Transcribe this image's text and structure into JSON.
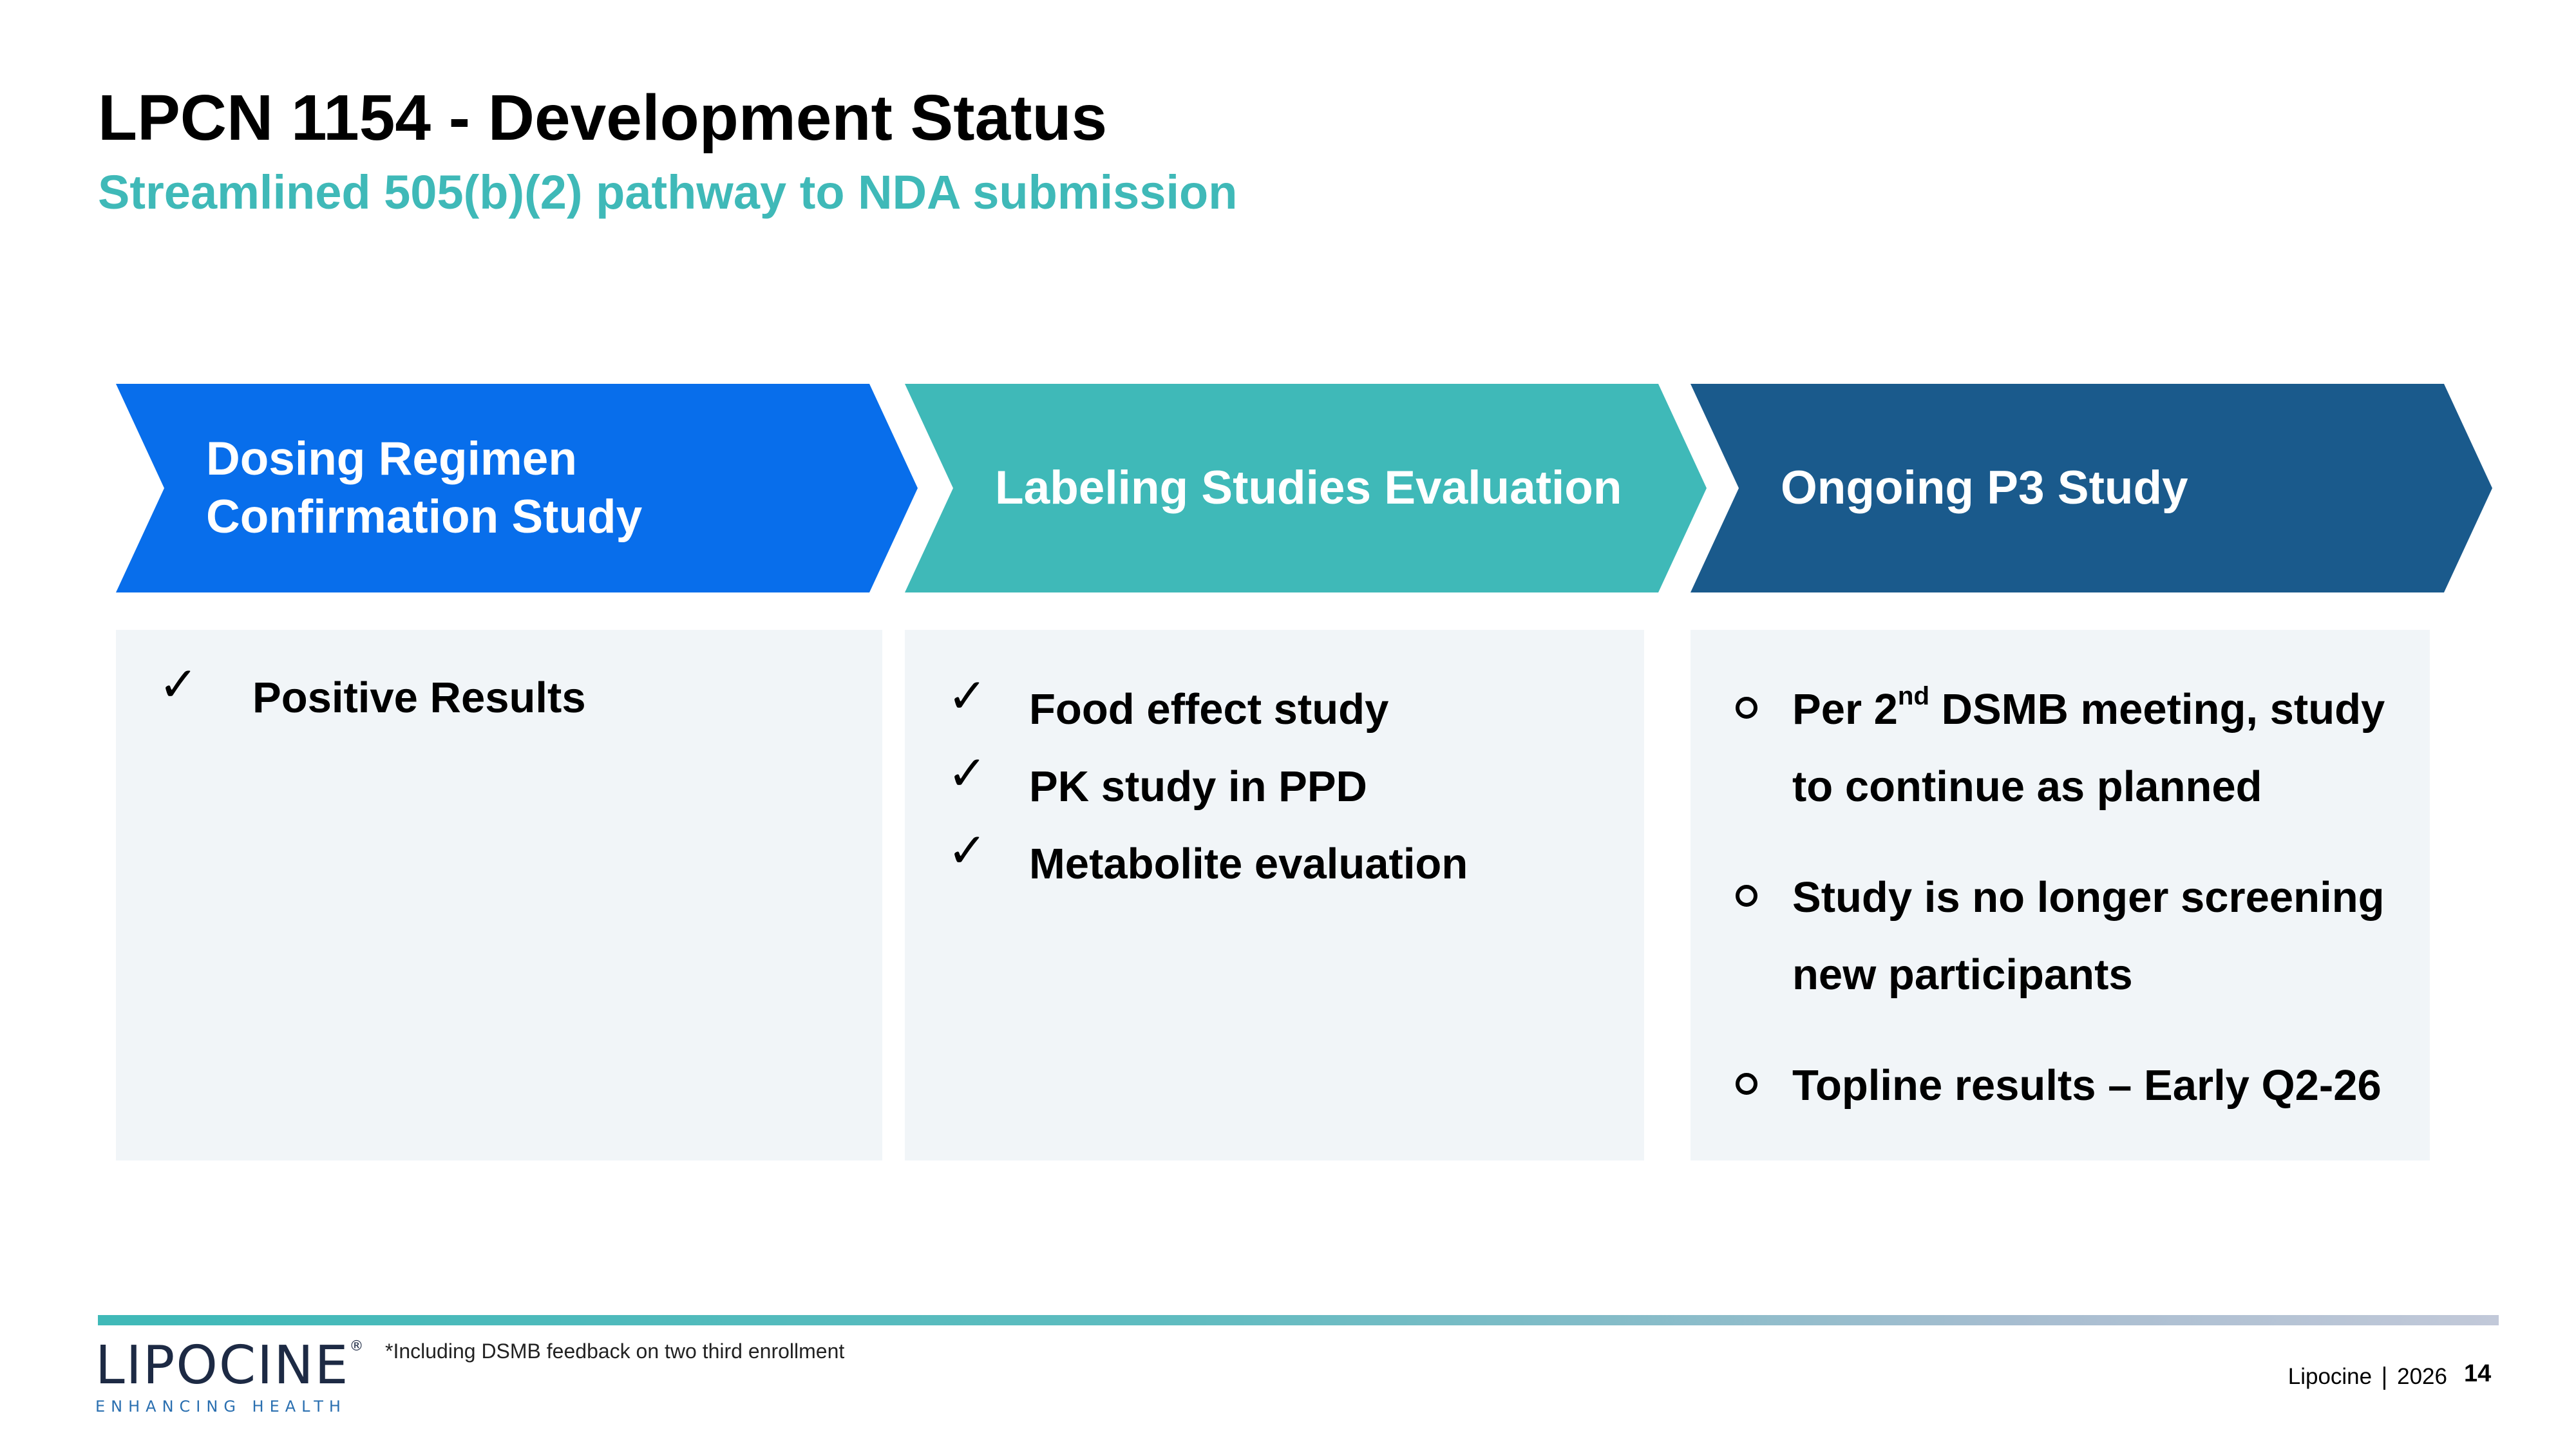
{
  "slide": {
    "title": "LPCN 1154 - Development Status",
    "subtitle": "Streamlined 505(b)(2) pathway to NDA submission"
  },
  "stages": [
    {
      "label_line1": "Dosing Regimen",
      "label_line2": "Confirmation Study",
      "color": "#086eeb",
      "items": [
        "Positive Results"
      ]
    },
    {
      "label": "Labeling Studies Evaluation",
      "color": "#3fb9b8",
      "items": [
        "Food effect study",
        "PK study in PPD",
        "Metabolite evaluation"
      ]
    },
    {
      "label": "Ongoing P3 Study",
      "color": "#1a5a8c",
      "items": [
        {
          "line1_pre": "Per 2",
          "line1_sup": "nd",
          "line1_post": " DSMB meeting, study",
          "line2": "to continue as planned"
        },
        {
          "line1": "Study is no longer screening",
          "line2": "new participants"
        },
        {
          "line1": "Topline results – Early Q2-26"
        }
      ]
    }
  ],
  "icons": {
    "completed": "check-mark-icon",
    "pending": "circle-bullet-icon",
    "check_glyph": "✓"
  },
  "footer": {
    "footnote": "*Including DSMB feedback on two third enrollment",
    "company": "Lipocine",
    "year": "2026",
    "page_number": "14",
    "logo_text": "LIPOCINE",
    "logo_reg": "®",
    "logo_tagline": "ENHANCING HEALTH"
  },
  "colors": {
    "accent_teal": "#3fb9b8",
    "blue": "#086eeb",
    "navy": "#1a5a8c",
    "panel_bg": "#f1f5f8"
  }
}
